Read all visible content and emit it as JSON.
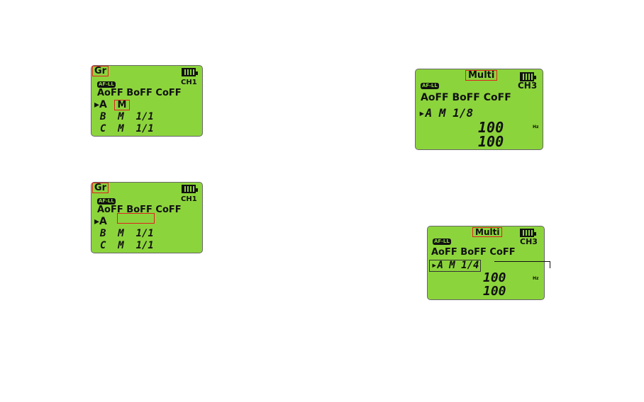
{
  "panels": [
    {
      "mode": "Gr",
      "af": "AF-LL",
      "channel": "CH1",
      "status": "AoFF BoFF CoFF",
      "rowA": "A",
      "rowA_mode": "M",
      "rowB": "B  M  1/1",
      "rowC": "C  M  1/1"
    },
    {
      "mode": "Gr",
      "af": "AF-LL",
      "channel": "CH1",
      "status": "AoFF BoFF CoFF",
      "rowA": "A",
      "rowA_mode": "",
      "rowB": "B  M  1/1",
      "rowC": "C  M  1/1"
    },
    {
      "mode": "Multi",
      "af": "AF-LL",
      "channel": "CH3",
      "status": "AoFF BoFF CoFF",
      "rowA": "A  M  1/8",
      "times": "100",
      "freq": "100",
      "unit": "Hz"
    },
    {
      "mode": "Multi",
      "af": "AF-LL",
      "channel": "CH3",
      "status": "AoFF BoFF CoFF",
      "rowA": "A  M  1/4",
      "times": "100",
      "freq": "100",
      "unit": "Hz"
    }
  ],
  "colors": {
    "lcd": "#8cd43c",
    "highlight": "#e02020"
  }
}
